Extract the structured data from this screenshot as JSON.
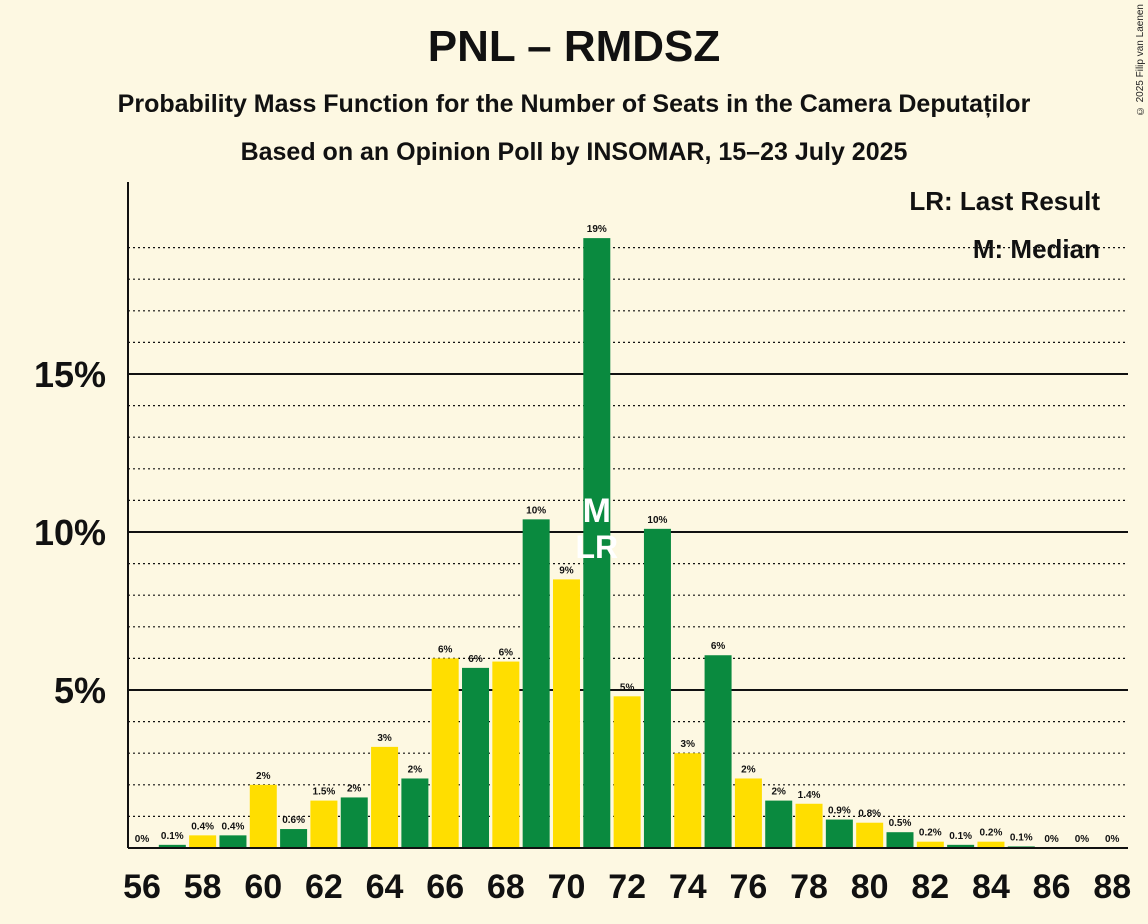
{
  "title": "PNL – RMDSZ",
  "subtitle": "Probability Mass Function for the Number of Seats in the Camera Deputaților",
  "subtitle2": "Based on an Opinion Poll by INSOMAR, 15–23 July 2025",
  "copyright": "© 2025 Filip van Laenen",
  "legend": {
    "last_result": "LR: Last Result",
    "median": "M: Median"
  },
  "colors": {
    "background": "#fdf8e2",
    "green": "#0a8a3f",
    "yellow": "#ffde00",
    "text": "#111111"
  },
  "chart_data": {
    "type": "bar",
    "title": "PNL – RMDSZ",
    "xlabel": "",
    "ylabel": "",
    "x": [
      56,
      57,
      58,
      59,
      60,
      61,
      62,
      63,
      64,
      65,
      66,
      67,
      68,
      69,
      70,
      71,
      72,
      73,
      74,
      75,
      76,
      77,
      78,
      79,
      80,
      81,
      82,
      83,
      84,
      85,
      86,
      87,
      88
    ],
    "values": [
      0,
      0.1,
      0.4,
      0.4,
      2,
      0.6,
      1.5,
      1.6,
      3.2,
      2.2,
      6.0,
      5.7,
      5.9,
      10.4,
      8.5,
      19.3,
      4.8,
      10.1,
      3.0,
      6.1,
      2.2,
      1.5,
      1.4,
      0.9,
      0.8,
      0.5,
      0.2,
      0.1,
      0.2,
      0.05,
      0,
      0,
      0
    ],
    "labels": [
      "0%",
      "0.1%",
      "0.4%",
      "0.4%",
      "2%",
      "0.6%",
      "1.5%",
      "2%",
      "3%",
      "2%",
      "6%",
      "6%",
      "6%",
      "10%",
      "9%",
      "19%",
      "5%",
      "10%",
      "3%",
      "6%",
      "2%",
      "2%",
      "1.4%",
      "0.9%",
      "0.8%",
      "0.5%",
      "0.2%",
      "0.1%",
      "0.2%",
      "0.1%",
      "0%",
      "0%",
      "0%"
    ],
    "x_tick_labels": [
      "56",
      "58",
      "60",
      "62",
      "64",
      "66",
      "68",
      "70",
      "72",
      "74",
      "76",
      "78",
      "80",
      "82",
      "84",
      "86",
      "88"
    ],
    "y_tick_labels": [
      "5%",
      "10%",
      "15%"
    ],
    "y_ticks": [
      5,
      10,
      15
    ],
    "ylim": [
      0,
      21
    ],
    "median": 71,
    "median_label": "M",
    "last_result": 71,
    "last_result_label": "LR",
    "grid": true,
    "legend_position": "top-right"
  }
}
